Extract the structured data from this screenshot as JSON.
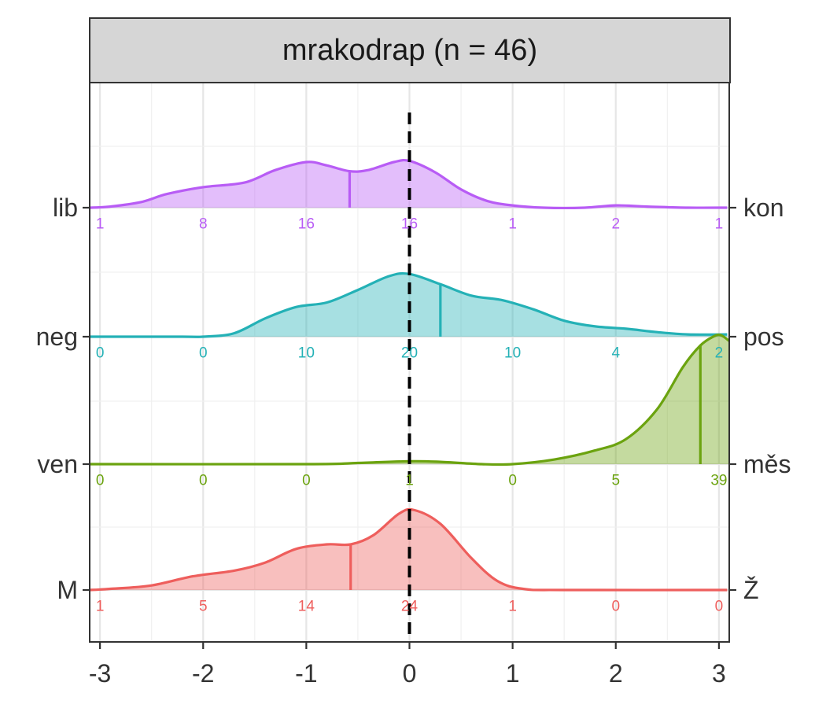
{
  "chart_data": {
    "type": "ridgeline",
    "title": "mrakodrap (n = 46)",
    "xlim": [
      -3.1,
      3.1
    ],
    "x_ticks": [
      -3,
      -2,
      -1,
      0,
      1,
      2,
      3
    ],
    "x_tick_labels": [
      "-3",
      "-2",
      "-1",
      "0",
      "1",
      "2",
      "3"
    ],
    "reference_line_x": 0,
    "grid": true,
    "count_x": [
      -3,
      -2,
      -1,
      0,
      1,
      2,
      3
    ],
    "series": [
      {
        "left_label": "lib",
        "right_label": "kon",
        "color": "#B85CF5",
        "mean": -0.58,
        "counts": [
          "1",
          "8",
          "16",
          "16",
          "1",
          "2",
          "1"
        ],
        "density": [
          [
            -3.1,
            0.0
          ],
          [
            -2.9,
            0.01
          ],
          [
            -2.6,
            0.05
          ],
          [
            -2.35,
            0.12
          ],
          [
            -2.0,
            0.18
          ],
          [
            -1.6,
            0.22
          ],
          [
            -1.3,
            0.33
          ],
          [
            -1.0,
            0.4
          ],
          [
            -0.8,
            0.37
          ],
          [
            -0.58,
            0.32
          ],
          [
            -0.4,
            0.33
          ],
          [
            -0.15,
            0.4
          ],
          [
            0.0,
            0.41
          ],
          [
            0.25,
            0.31
          ],
          [
            0.5,
            0.16
          ],
          [
            0.75,
            0.06
          ],
          [
            1.0,
            0.02
          ],
          [
            1.3,
            0.0
          ],
          [
            1.7,
            0.0
          ],
          [
            2.0,
            0.02
          ],
          [
            2.3,
            0.01
          ],
          [
            2.7,
            0.0
          ],
          [
            3.08,
            0.0
          ]
        ]
      },
      {
        "left_label": "neg",
        "right_label": "pos",
        "color": "#24B1B6",
        "mean": 0.3,
        "counts": [
          "0",
          "0",
          "10",
          "20",
          "10",
          "4",
          "2"
        ],
        "density": [
          [
            -3.1,
            0.0
          ],
          [
            -2.2,
            0.0
          ],
          [
            -2.0,
            0.0
          ],
          [
            -1.7,
            0.03
          ],
          [
            -1.4,
            0.16
          ],
          [
            -1.1,
            0.26
          ],
          [
            -0.8,
            0.3
          ],
          [
            -0.5,
            0.41
          ],
          [
            -0.2,
            0.53
          ],
          [
            0.0,
            0.55
          ],
          [
            0.3,
            0.46
          ],
          [
            0.6,
            0.36
          ],
          [
            0.9,
            0.32
          ],
          [
            1.2,
            0.24
          ],
          [
            1.5,
            0.14
          ],
          [
            1.8,
            0.09
          ],
          [
            2.1,
            0.07
          ],
          [
            2.4,
            0.04
          ],
          [
            2.7,
            0.02
          ],
          [
            3.08,
            0.02
          ]
        ]
      },
      {
        "left_label": "ven",
        "right_label": "měs",
        "color": "#6BA30F",
        "mean": 2.82,
        "counts": [
          "0",
          "0",
          "0",
          "1",
          "0",
          "5",
          "39"
        ],
        "density": [
          [
            -3.1,
            0.0
          ],
          [
            -1.0,
            0.0
          ],
          [
            -0.5,
            0.01
          ],
          [
            0.0,
            0.025
          ],
          [
            0.3,
            0.02
          ],
          [
            0.7,
            0.0
          ],
          [
            1.0,
            0.0
          ],
          [
            1.4,
            0.04
          ],
          [
            1.8,
            0.12
          ],
          [
            2.1,
            0.22
          ],
          [
            2.4,
            0.48
          ],
          [
            2.65,
            0.85
          ],
          [
            2.82,
            1.04
          ],
          [
            2.95,
            1.12
          ],
          [
            3.02,
            1.13
          ],
          [
            3.1,
            1.08
          ]
        ]
      },
      {
        "left_label": "M",
        "right_label": "Ž",
        "color": "#EE5E5C",
        "mean": -0.57,
        "counts": [
          "1",
          "5",
          "14",
          "24",
          "1",
          "0",
          "0"
        ],
        "density": [
          [
            -3.1,
            0.0
          ],
          [
            -2.9,
            0.01
          ],
          [
            -2.5,
            0.04
          ],
          [
            -2.1,
            0.12
          ],
          [
            -1.7,
            0.17
          ],
          [
            -1.4,
            0.24
          ],
          [
            -1.1,
            0.36
          ],
          [
            -0.8,
            0.4
          ],
          [
            -0.57,
            0.4
          ],
          [
            -0.35,
            0.48
          ],
          [
            -0.1,
            0.67
          ],
          [
            0.05,
            0.7
          ],
          [
            0.3,
            0.58
          ],
          [
            0.6,
            0.28
          ],
          [
            0.85,
            0.08
          ],
          [
            1.1,
            0.01
          ],
          [
            1.5,
            0.0
          ],
          [
            3.08,
            0.0
          ]
        ]
      }
    ]
  }
}
